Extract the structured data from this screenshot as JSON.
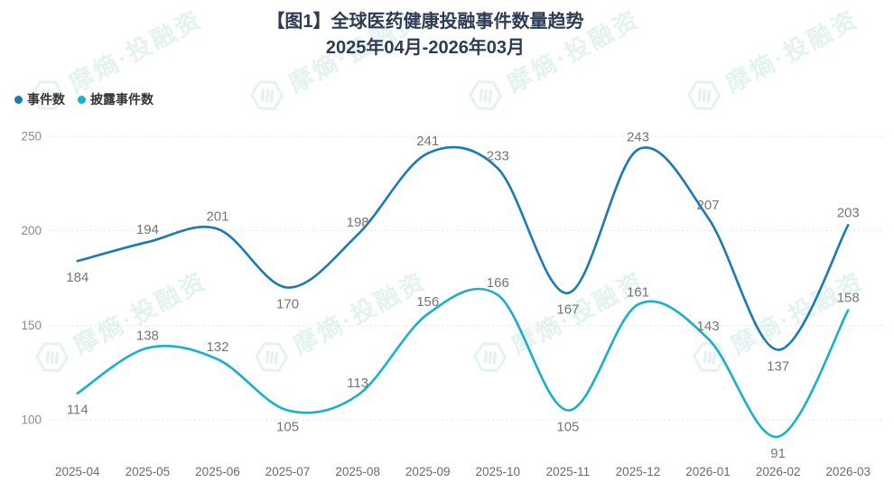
{
  "title": {
    "line1": "【图1】全球医药健康投融事件数量趋势",
    "line2": "2025年04月-2026年03月",
    "color": "#2d3c55"
  },
  "legend": {
    "position": "top-left",
    "items": [
      {
        "label": "事件数",
        "color": "#1a7ab5"
      },
      {
        "label": "披露事件数",
        "color": "#17b0cd"
      }
    ]
  },
  "watermark": {
    "text": "摩熵·投融资",
    "color": "#cfe8e4"
  },
  "chart_data": {
    "type": "line",
    "smooth": true,
    "title": "【图1】全球医药健康投融事件数量趋势",
    "subtitle": "2025年04月-2026年03月",
    "categories": [
      "2025-04",
      "2025-05",
      "2025-06",
      "2025-07",
      "2025-08",
      "2025-09",
      "2025-10",
      "2025-11",
      "2025-12",
      "2026-01",
      "2026-02",
      "2026-03"
    ],
    "series": [
      {
        "name": "事件数",
        "color": "#1a7ab5",
        "values": [
          184,
          194,
          201,
          170,
          198,
          241,
          233,
          167,
          243,
          207,
          137,
          203
        ]
      },
      {
        "name": "披露事件数",
        "color": "#17b0cd",
        "values": [
          114,
          138,
          132,
          105,
          113,
          156,
          166,
          105,
          161,
          143,
          91,
          158
        ]
      }
    ],
    "xlabel": "",
    "ylabel": "",
    "ylim": [
      100,
      250
    ],
    "yticks": [
      100,
      150,
      200,
      250
    ],
    "grid": "horizontal-dotted",
    "legend_position": "top-left",
    "data_labels": "shown",
    "colors": {
      "value_label": "#757575",
      "y_axis_label": "#8c8c8c",
      "x_axis_label": "#6b6b6b",
      "gridline": "#dcdcdc"
    }
  }
}
